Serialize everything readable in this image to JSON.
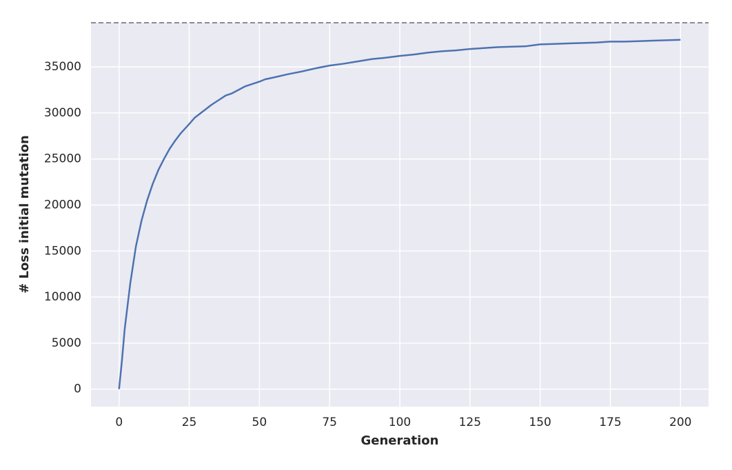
{
  "chart_data": {
    "type": "line",
    "xlabel": "Generation",
    "ylabel": "# Loss initial mutation",
    "x": [
      0,
      1,
      2,
      3,
      4,
      5,
      6,
      8,
      10,
      12,
      14,
      16,
      18,
      20,
      22,
      25,
      27,
      30,
      33,
      36,
      38,
      40,
      45,
      50,
      52,
      55,
      60,
      65,
      70,
      75,
      80,
      85,
      90,
      95,
      100,
      105,
      110,
      115,
      120,
      125,
      130,
      135,
      140,
      145,
      150,
      155,
      160,
      165,
      170,
      175,
      180,
      185,
      190,
      195,
      200
    ],
    "series": [
      {
        "color": "#4c72b0",
        "values": [
          0,
          3000,
          6500,
          9000,
          11500,
          13500,
          15500,
          18300,
          20500,
          22300,
          23800,
          25000,
          26100,
          27000,
          27800,
          28800,
          29500,
          30200,
          30900,
          31500,
          31900,
          32100,
          32900,
          33400,
          33650,
          33850,
          34200,
          34500,
          34850,
          35150,
          35350,
          35600,
          35850,
          36000,
          36200,
          36350,
          36550,
          36700,
          36800,
          36950,
          37050,
          37150,
          37200,
          37250,
          37450,
          37500,
          37550,
          37600,
          37650,
          37750,
          37750,
          37800,
          37850,
          37900,
          37950
        ]
      }
    ],
    "reference_line": 39800,
    "reference_color": "#666677",
    "xlim": [
      -10,
      210
    ],
    "ylim": [
      -1900,
      39800
    ],
    "xticks": [
      0,
      25,
      50,
      75,
      100,
      125,
      150,
      175,
      200
    ],
    "yticks": [
      0,
      5000,
      10000,
      15000,
      20000,
      25000,
      30000,
      35000
    ],
    "grid": true
  }
}
